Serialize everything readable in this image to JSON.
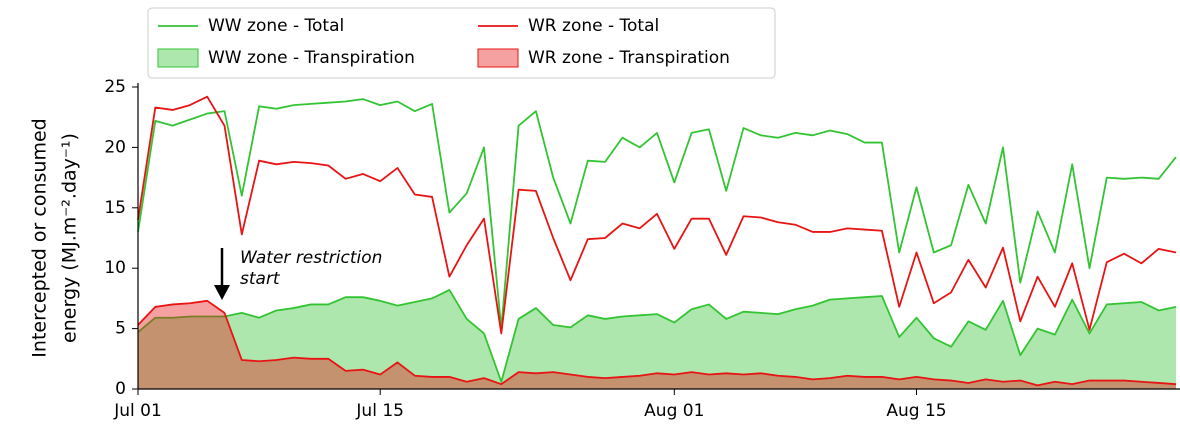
{
  "chart_data": {
    "type": "line",
    "ylabel": [
      "Intercepted or consumed",
      "energy (MJ.m⁻².day⁻¹)"
    ],
    "annotation": [
      "Water restriction",
      "start"
    ],
    "x": [
      0,
      1,
      2,
      3,
      4,
      5,
      6,
      7,
      8,
      9,
      10,
      11,
      12,
      13,
      14,
      15,
      16,
      17,
      18,
      19,
      20,
      21,
      22,
      23,
      24,
      25,
      26,
      27,
      28,
      29,
      30,
      31,
      32,
      33,
      34,
      35,
      36,
      37,
      38,
      39,
      40,
      41,
      42,
      43,
      44,
      45,
      46,
      47,
      48,
      49,
      50,
      51,
      52,
      53,
      54,
      55,
      56,
      57,
      58,
      59,
      60
    ],
    "xlim": [
      0,
      60
    ],
    "xticks": [
      {
        "value": 0,
        "label": "Jul 01"
      },
      {
        "value": 14,
        "label": "Jul 15"
      },
      {
        "value": 31,
        "label": "Aug 01"
      },
      {
        "value": 45,
        "label": "Aug 15"
      }
    ],
    "ylim": [
      0,
      25
    ],
    "yticks": [
      0,
      5,
      10,
      15,
      20,
      25
    ],
    "series": [
      {
        "name": "WW zone - Total",
        "kind": "line",
        "color": "#33c433",
        "values": [
          13,
          22.2,
          21.8,
          22.3,
          22.8,
          23,
          16,
          23.4,
          23.2,
          23.5,
          23.6,
          23.7,
          23.8,
          24,
          23.5,
          23.8,
          23,
          23.6,
          14.6,
          16.2,
          20,
          5,
          21.8,
          23,
          17.5,
          13.7,
          18.9,
          18.8,
          20.8,
          20,
          21.2,
          17.1,
          21.2,
          21.5,
          16.4,
          21.6,
          21,
          20.8,
          21.2,
          21,
          21.4,
          21.1,
          20.4,
          20.4,
          11.3,
          16.7,
          11.3,
          11.9,
          16.9,
          13.7,
          20,
          8.8,
          14.7,
          11.3,
          18.6,
          10,
          17.5,
          17.4,
          17.5,
          17.4,
          19.2
        ]
      },
      {
        "name": "WR zone - Total",
        "kind": "line",
        "color": "#e81414",
        "values": [
          14,
          23.3,
          23.1,
          23.5,
          24.2,
          21.8,
          12.8,
          18.9,
          18.6,
          18.8,
          18.7,
          18.5,
          17.4,
          17.8,
          17.2,
          18.3,
          16.1,
          15.9,
          9.3,
          11.9,
          14.1,
          4.6,
          16.5,
          16.4,
          12.5,
          9,
          12.4,
          12.5,
          13.7,
          13.3,
          14.5,
          11.6,
          14.1,
          14.1,
          11.1,
          14.3,
          14.2,
          13.8,
          13.6,
          13,
          13,
          13.3,
          13.2,
          13.1,
          6.8,
          11.3,
          7.1,
          8,
          10.7,
          8.4,
          11.7,
          5.6,
          9.3,
          6.8,
          10.4,
          4.9,
          10.5,
          11.2,
          10.4,
          11.6,
          11.3
        ]
      },
      {
        "name": "WW zone - Transpiration",
        "kind": "area",
        "color": "#33c433",
        "values": [
          4.7,
          5.9,
          5.9,
          6,
          6,
          6,
          6.3,
          5.9,
          6.5,
          6.7,
          7,
          7,
          7.6,
          7.6,
          7.3,
          6.9,
          7.2,
          7.5,
          8.2,
          5.8,
          4.6,
          0.6,
          5.8,
          6.7,
          5.3,
          5.1,
          6.1,
          5.8,
          6,
          6.1,
          6.2,
          5.5,
          6.6,
          7,
          5.8,
          6.4,
          6.3,
          6.2,
          6.6,
          6.9,
          7.4,
          7.5,
          7.6,
          7.7,
          4.3,
          5.9,
          4.2,
          3.5,
          5.6,
          4.9,
          7.3,
          2.8,
          5,
          4.5,
          7.4,
          4.6,
          7,
          7.1,
          7.2,
          6.5,
          6.8
        ]
      },
      {
        "name": "WR zone - Transpiration",
        "kind": "area",
        "color": "#e81414",
        "values": [
          5.3,
          6.8,
          7,
          7.1,
          7.3,
          6.3,
          2.4,
          2.3,
          2.4,
          2.6,
          2.5,
          2.5,
          1.5,
          1.6,
          1.2,
          2.2,
          1.1,
          1,
          1,
          0.6,
          0.9,
          0.4,
          1.4,
          1.3,
          1.4,
          1.2,
          1,
          0.9,
          1,
          1.1,
          1.3,
          1.2,
          1.4,
          1.2,
          1.3,
          1.2,
          1.3,
          1.1,
          1,
          0.8,
          0.9,
          1.1,
          1,
          1,
          0.8,
          1,
          0.8,
          0.7,
          0.5,
          0.8,
          0.6,
          0.7,
          0.3,
          0.6,
          0.4,
          0.7,
          0.7,
          0.7,
          0.6,
          0.5,
          0.4
        ]
      }
    ]
  }
}
